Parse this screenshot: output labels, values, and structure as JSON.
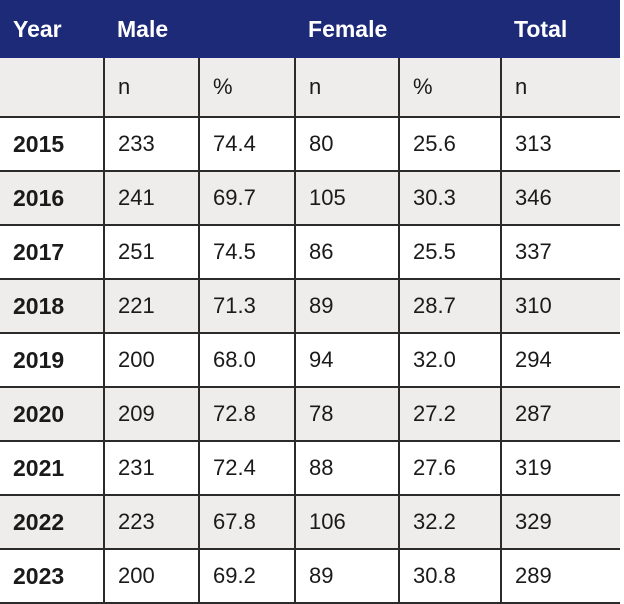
{
  "chart_data": {
    "type": "table",
    "header_groups": [
      {
        "label": "Year",
        "span": 1
      },
      {
        "label": "Male",
        "span": 2
      },
      {
        "label": "Female",
        "span": 2
      },
      {
        "label": "Total",
        "span": 1
      }
    ],
    "subheaders": [
      "",
      "n",
      "%",
      "n",
      "%",
      "n"
    ],
    "columns": [
      "Year",
      "Male n",
      "Male %",
      "Female n",
      "Female %",
      "Total n"
    ],
    "rows": [
      [
        "2015",
        "233",
        "74.4",
        "80",
        "25.6",
        "313"
      ],
      [
        "2016",
        "241",
        "69.7",
        "105",
        "30.3",
        "346"
      ],
      [
        "2017",
        "251",
        "74.5",
        "86",
        "25.5",
        "337"
      ],
      [
        "2018",
        "221",
        "71.3",
        "89",
        "28.7",
        "310"
      ],
      [
        "2019",
        "200",
        "68.0",
        "94",
        "32.0",
        "294"
      ],
      [
        "2020",
        "209",
        "72.8",
        "78",
        "27.2",
        "287"
      ],
      [
        "2021",
        "231",
        "72.4",
        "88",
        "27.6",
        "319"
      ],
      [
        "2022",
        "223",
        "67.8",
        "106",
        "32.2",
        "329"
      ],
      [
        "2023",
        "200",
        "69.2",
        "89",
        "30.8",
        "289"
      ]
    ]
  },
  "colors": {
    "header_background": "#1c2a78",
    "header_text": "#ffffff",
    "stripe_background": "#eeedeb",
    "row_background": "#ffffff",
    "border": "#2b2b2b"
  }
}
